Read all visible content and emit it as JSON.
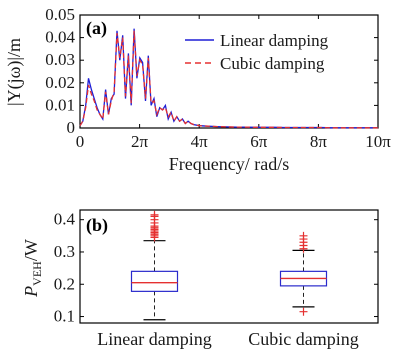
{
  "chart_data": [
    {
      "type": "line",
      "panel_label": "(a)",
      "xlabel": "Frequency/ rad/s",
      "ylabel": "|Y(jω)|/m",
      "xlim": [
        0,
        31.416
      ],
      "ylim": [
        0,
        0.05
      ],
      "x_tick_labels": [
        "0",
        "2π",
        "4π",
        "6π",
        "8π",
        "10π"
      ],
      "x_ticks": [
        0,
        6.283,
        12.566,
        18.85,
        25.133,
        31.416
      ],
      "y_ticks": [
        0,
        0.01,
        0.02,
        0.03,
        0.04,
        0.05
      ],
      "y_tick_labels": [
        "0",
        "0.01",
        "0.02",
        "0.03",
        "0.04",
        "0.05"
      ],
      "legend_position": "top-right",
      "series": [
        {
          "name": "Linear damping",
          "color": "#1f1fd6",
          "style": "solid",
          "x": [
            0,
            0.3,
            0.6,
            0.9,
            1.2,
            1.5,
            1.8,
            2.1,
            2.4,
            2.7,
            3.0,
            3.3,
            3.6,
            3.9,
            4.2,
            4.5,
            4.8,
            5.1,
            5.4,
            5.7,
            6.0,
            6.3,
            6.6,
            6.9,
            7.2,
            7.5,
            7.8,
            8.1,
            8.4,
            8.7,
            9.0,
            9.3,
            9.6,
            9.9,
            10.2,
            10.5,
            10.8,
            11.1,
            11.4,
            11.7,
            12.0,
            12.6,
            13.5,
            14.5,
            15.5,
            16.5,
            17.5,
            18.5,
            19.5,
            20.5,
            21.5,
            22.5,
            23.5,
            24.5,
            25.5,
            26.5,
            27.5,
            28.5,
            29.5,
            30.5,
            31.4
          ],
          "values": [
            0.001,
            0.003,
            0.01,
            0.022,
            0.017,
            0.013,
            0.009,
            0.006,
            0.004,
            0.017,
            0.006,
            0.013,
            0.015,
            0.043,
            0.03,
            0.041,
            0.013,
            0.033,
            0.01,
            0.044,
            0.022,
            0.031,
            0.029,
            0.012,
            0.032,
            0.01,
            0.013,
            0.005,
            0.009,
            0.008,
            0.01,
            0.004,
            0.007,
            0.003,
            0.005,
            0.003,
            0.004,
            0.002,
            0.003,
            0.002,
            0.0015,
            0.001,
            0.0008,
            0.0006,
            0.0005,
            0.0004,
            0.0004,
            0.0003,
            0.0003,
            0.0003,
            0.0002,
            0.0002,
            0.0002,
            0.0002,
            0.0002,
            0.0001,
            0.0001,
            0.0001,
            0.0001,
            0.0001,
            0.0001
          ]
        },
        {
          "name": "Cubic damping",
          "color": "#e53030",
          "style": "dashed",
          "x": [
            0,
            0.3,
            0.6,
            0.9,
            1.2,
            1.5,
            1.8,
            2.1,
            2.4,
            2.7,
            3.0,
            3.3,
            3.6,
            3.9,
            4.2,
            4.5,
            4.8,
            5.1,
            5.4,
            5.7,
            6.0,
            6.3,
            6.6,
            6.9,
            7.2,
            7.5,
            7.8,
            8.1,
            8.4,
            8.7,
            9.0,
            9.3,
            9.6,
            9.9,
            10.2,
            10.5,
            10.8,
            11.1,
            11.4,
            11.7,
            12.0,
            12.6,
            13.5,
            14.5,
            15.5,
            16.5,
            17.5,
            18.5,
            19.5,
            20.5,
            21.5,
            22.5,
            23.5,
            24.5,
            25.5,
            26.5,
            27.5,
            28.5,
            29.5,
            30.5,
            31.4
          ],
          "values": [
            0.001,
            0.003,
            0.009,
            0.019,
            0.015,
            0.012,
            0.008,
            0.006,
            0.004,
            0.016,
            0.006,
            0.012,
            0.016,
            0.042,
            0.031,
            0.04,
            0.014,
            0.032,
            0.011,
            0.043,
            0.023,
            0.03,
            0.028,
            0.013,
            0.031,
            0.011,
            0.012,
            0.006,
            0.009,
            0.008,
            0.009,
            0.005,
            0.007,
            0.003,
            0.005,
            0.003,
            0.004,
            0.002,
            0.003,
            0.002,
            0.0015,
            0.001,
            0.0008,
            0.0006,
            0.0005,
            0.0004,
            0.0004,
            0.0003,
            0.0003,
            0.0003,
            0.0002,
            0.0002,
            0.0002,
            0.0002,
            0.0002,
            0.0001,
            0.0001,
            0.0001,
            0.0001,
            0.0001,
            0.0001
          ]
        }
      ]
    },
    {
      "type": "box",
      "panel_label": "(b)",
      "ylabel_main": "P",
      "ylabel_sub": "VEH",
      "ylabel_unit": "/W",
      "ylim": [
        0.08,
        0.43
      ],
      "y_ticks": [
        0.1,
        0.2,
        0.3,
        0.4
      ],
      "y_tick_labels": [
        "0.1",
        "0.2",
        "0.3",
        "0.4"
      ],
      "categories": [
        "Linear damping",
        "Cubic damping"
      ],
      "boxes": [
        {
          "name": "Linear damping",
          "whisker_low": 0.09,
          "q1": 0.178,
          "median": 0.205,
          "q3": 0.24,
          "whisker_high": 0.335,
          "outliers": [
            0.345,
            0.35,
            0.355,
            0.36,
            0.365,
            0.37,
            0.375,
            0.38,
            0.39,
            0.4,
            0.41,
            0.415
          ]
        },
        {
          "name": "Cubic damping",
          "whisker_low": 0.13,
          "q1": 0.195,
          "median": 0.218,
          "q3": 0.24,
          "whisker_high": 0.305,
          "outliers": [
            0.115,
            0.31,
            0.32,
            0.33,
            0.34,
            0.35
          ]
        }
      ],
      "box_color": "#2a2acc",
      "median_color": "#e53030",
      "outlier_color": "#e53030"
    }
  ]
}
